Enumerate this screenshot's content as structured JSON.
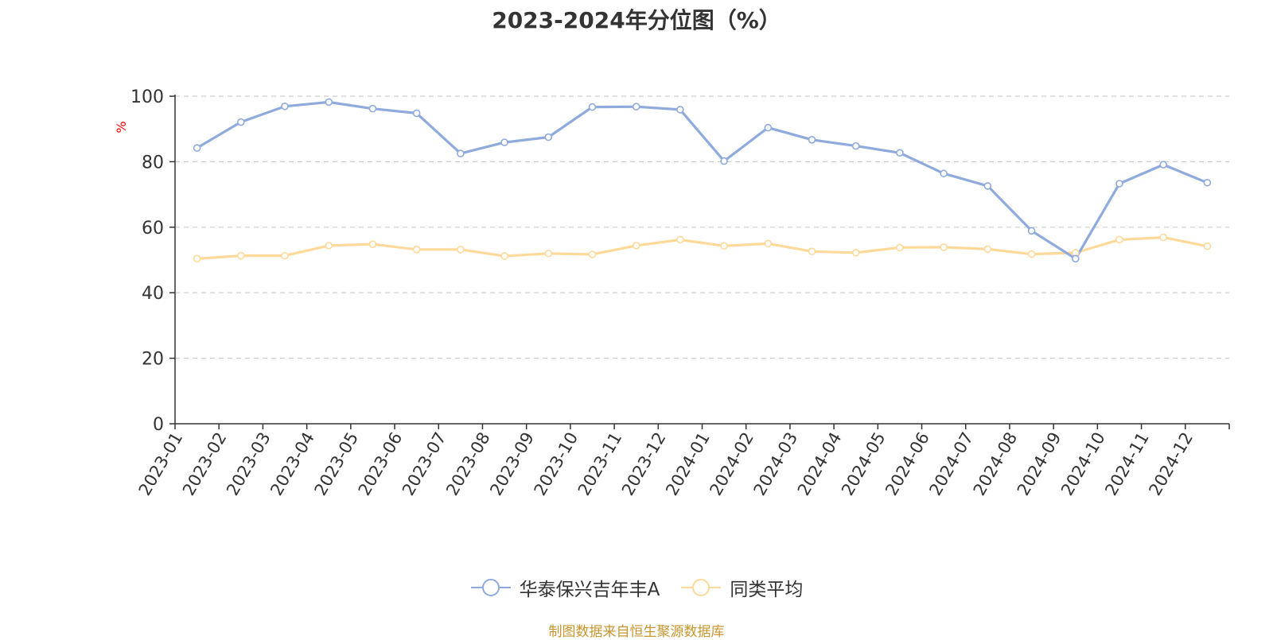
{
  "chart_data": {
    "type": "line",
    "title": "2023-2024年分位图（%）",
    "ylabel": "%",
    "xlabel": "",
    "ylim": [
      0,
      100
    ],
    "yticks": [
      0,
      20,
      40,
      60,
      80,
      100
    ],
    "grid": "horizontal dashed",
    "legend_position": "bottom",
    "categories": [
      "2023-01",
      "2023-02",
      "2023-03",
      "2023-04",
      "2023-05",
      "2023-06",
      "2023-07",
      "2023-08",
      "2023-09",
      "2023-10",
      "2023-11",
      "2023-12",
      "2024-01",
      "2024-02",
      "2024-03",
      "2024-04",
      "2024-05",
      "2024-06",
      "2024-07",
      "2024-08",
      "2024-09",
      "2024-10",
      "2024-11",
      "2024-12"
    ],
    "series": [
      {
        "name": "华泰保兴吉年丰A",
        "color": "#8faadc",
        "values": [
          84.2,
          92.1,
          96.9,
          98.2,
          96.2,
          94.8,
          82.5,
          85.9,
          87.5,
          96.7,
          96.8,
          95.9,
          80.2,
          90.4,
          86.7,
          84.8,
          82.7,
          76.4,
          72.6,
          58.9,
          50.4,
          73.3,
          79.1,
          73.6
        ]
      },
      {
        "name": "同类平均",
        "color": "#ffd99a",
        "values": [
          50.4,
          51.3,
          51.3,
          54.4,
          54.8,
          53.2,
          53.2,
          51.2,
          52.0,
          51.7,
          54.4,
          56.2,
          54.3,
          55.0,
          52.6,
          52.2,
          53.8,
          53.9,
          53.3,
          51.8,
          52.2,
          56.2,
          56.9,
          54.2
        ]
      }
    ]
  },
  "source": {
    "text": "制图数据来自恒生聚源数据库",
    "color": "#c8952e"
  },
  "colors": {
    "axis": "#333333",
    "grid": "#cccccc",
    "ylabel": "#ff0000"
  }
}
